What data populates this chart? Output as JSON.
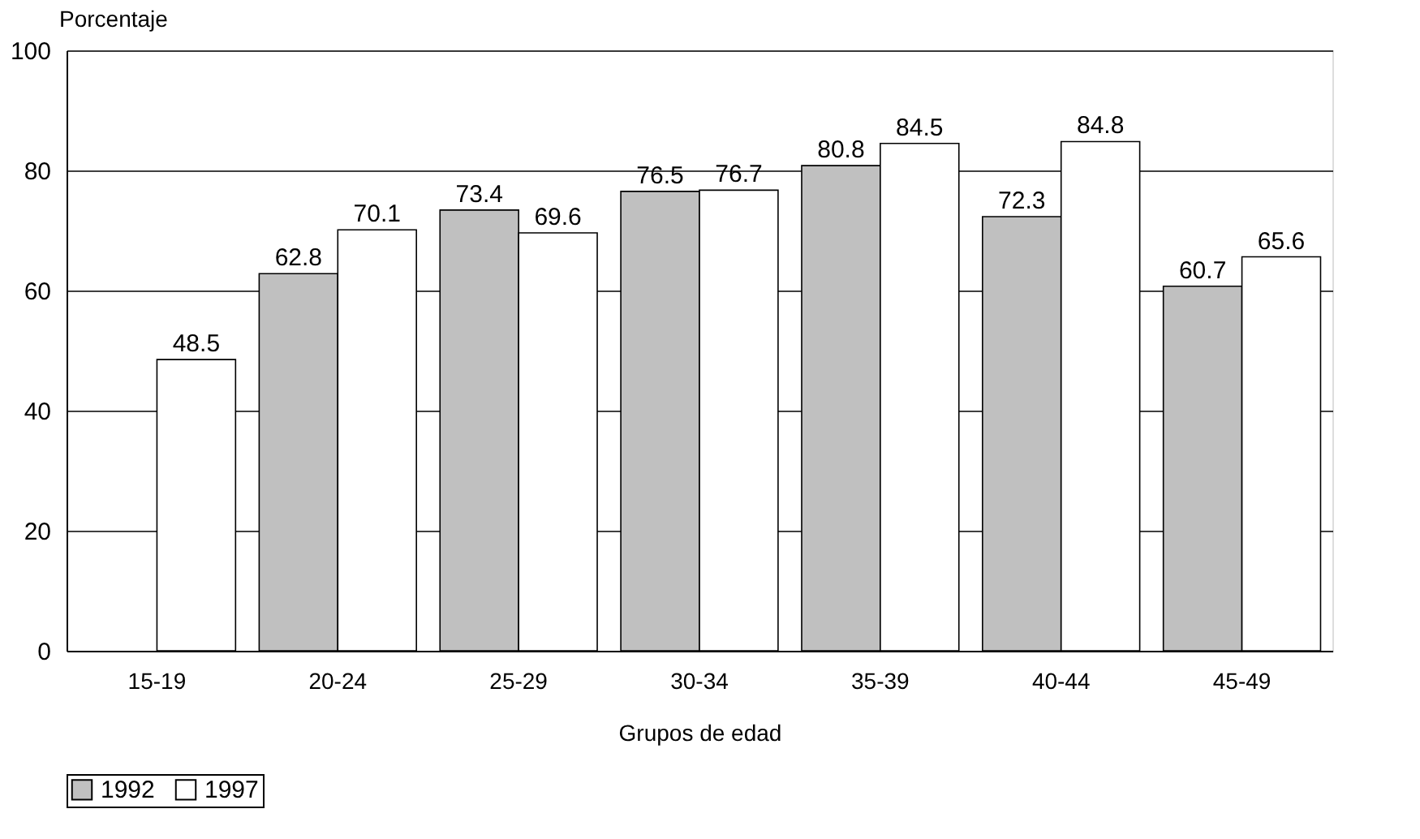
{
  "chart_data": {
    "type": "bar",
    "ylabel": "Porcentaje",
    "xlabel": "Grupos de edad",
    "categories": [
      "15-19",
      "20-24",
      "25-29",
      "30-34",
      "35-39",
      "40-44",
      "45-49"
    ],
    "series": [
      {
        "name": "1992",
        "color": "#c0c0c0",
        "values": [
          null,
          62.8,
          73.4,
          76.5,
          80.8,
          72.3,
          60.7
        ]
      },
      {
        "name": "1997",
        "color": "#ffffff",
        "values": [
          48.5,
          70.1,
          69.6,
          76.7,
          84.5,
          84.8,
          65.6
        ]
      }
    ],
    "ylim": [
      0,
      100
    ],
    "yticks": [
      0,
      20,
      40,
      60,
      80,
      100
    ],
    "grid": "y",
    "data_labels": true,
    "legend": "bottom"
  }
}
